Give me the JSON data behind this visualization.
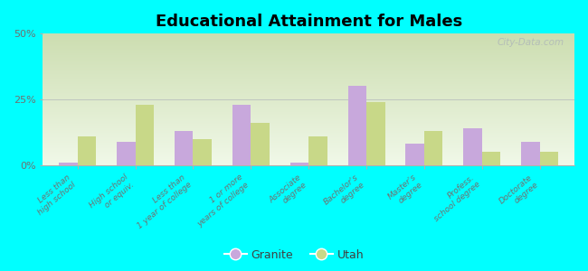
{
  "title": "Educational Attainment for Males",
  "categories": [
    "Less than\nhigh school",
    "High school\nor equiv.",
    "Less than\n1 year of college",
    "1 or more\nyears of college",
    "Associate\ndegree",
    "Bachelor's\ndegree",
    "Master's\ndegree",
    "Profess.\nschool degree",
    "Doctorate\ndegree"
  ],
  "granite_values": [
    1,
    9,
    13,
    23,
    1,
    30,
    8,
    14,
    9
  ],
  "utah_values": [
    11,
    23,
    10,
    16,
    11,
    24,
    13,
    5,
    5
  ],
  "granite_color": "#c8a8dc",
  "utah_color": "#c8d888",
  "background_color": "#00ffff",
  "plot_bg_top_color": "#ccddb0",
  "plot_bg_bottom_color": "#f0f8e8",
  "yticks": [
    0,
    25,
    50
  ],
  "ylim": [
    0,
    50
  ],
  "ylabel_labels": [
    "0%",
    "25%",
    "50%"
  ],
  "watermark": "City-Data.com",
  "legend_labels": [
    "Granite",
    "Utah"
  ]
}
